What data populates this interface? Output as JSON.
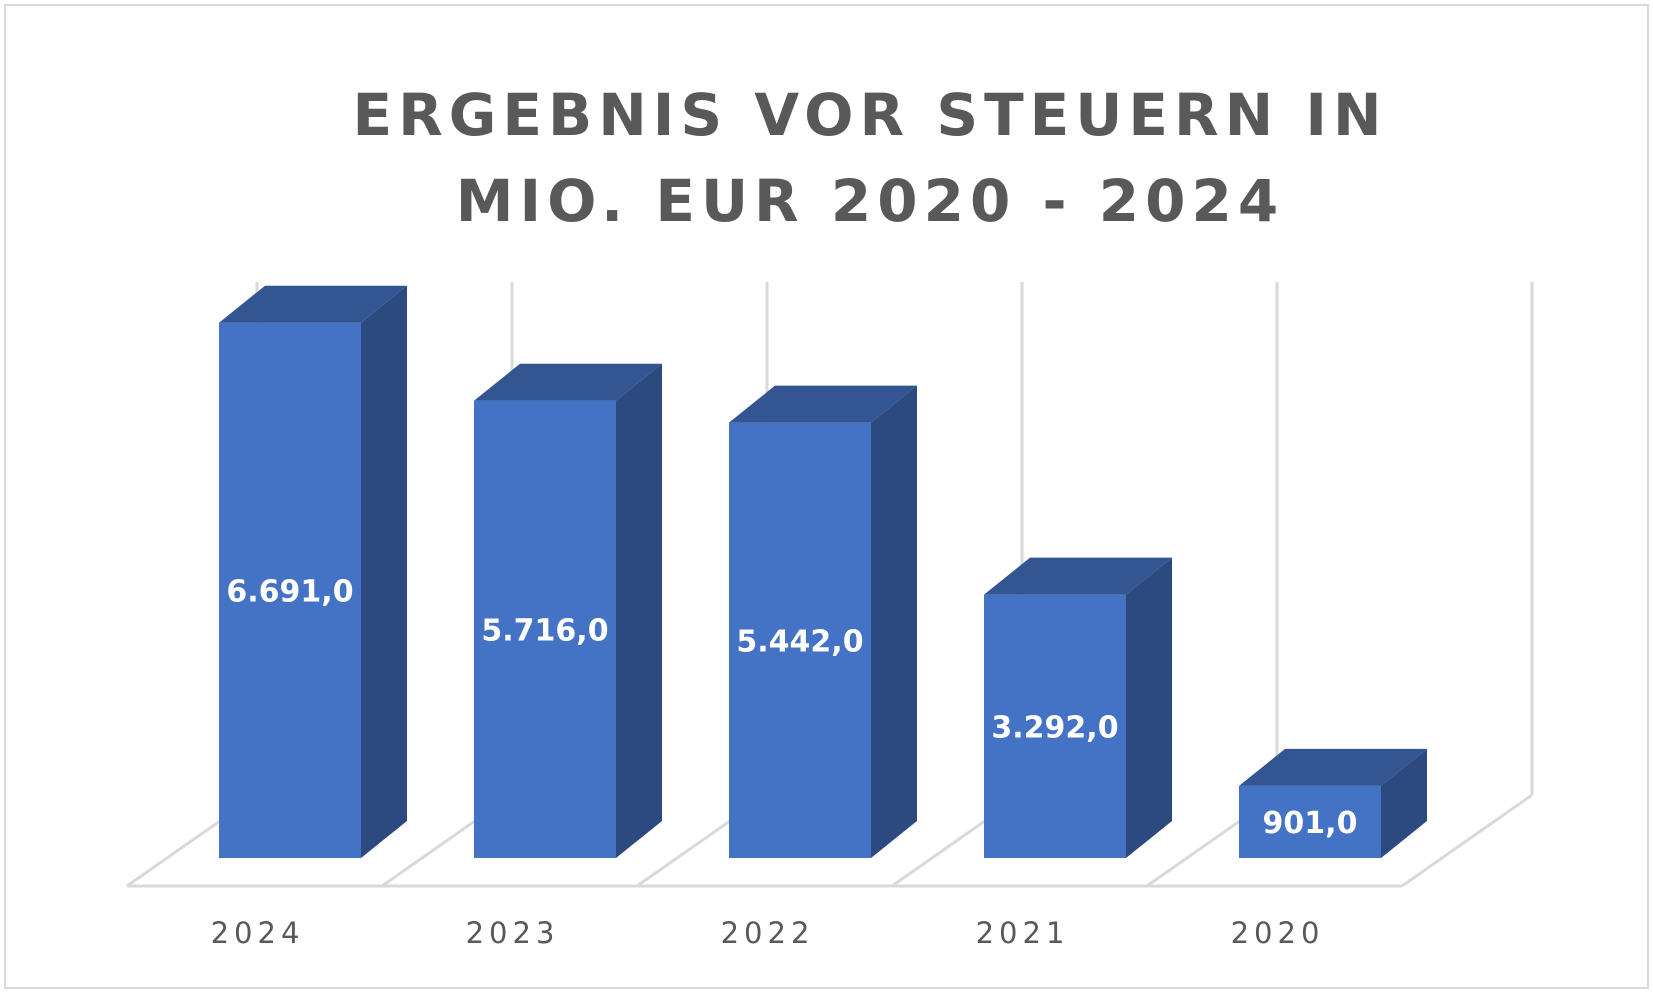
{
  "chart_data": {
    "type": "bar",
    "title": "ERGEBNIS VOR STEUERN IN MIO. EUR 2020 - 2024",
    "xlabel": "",
    "ylabel": "",
    "categories": [
      "2024",
      "2023",
      "2022",
      "2021",
      "2020"
    ],
    "series": [
      {
        "values": [
          6691.0,
          5716.0,
          5442.0,
          3292.0,
          901.0
        ],
        "labels": [
          "6.691,0",
          "5.716,0",
          "5.442,0",
          "3.292,0",
          "901,0"
        ]
      }
    ],
    "ylim": [
      0,
      7500
    ],
    "grid": "vertical",
    "legend": "none",
    "style": "3d-column",
    "colors": {
      "bar_front": "#4472c4",
      "bar_top": "#335591",
      "bar_side": "#2c4a80",
      "grid": "#d9d9d9",
      "title": "#595959",
      "tick_label": "#595959",
      "data_label": "#ffffff"
    }
  }
}
